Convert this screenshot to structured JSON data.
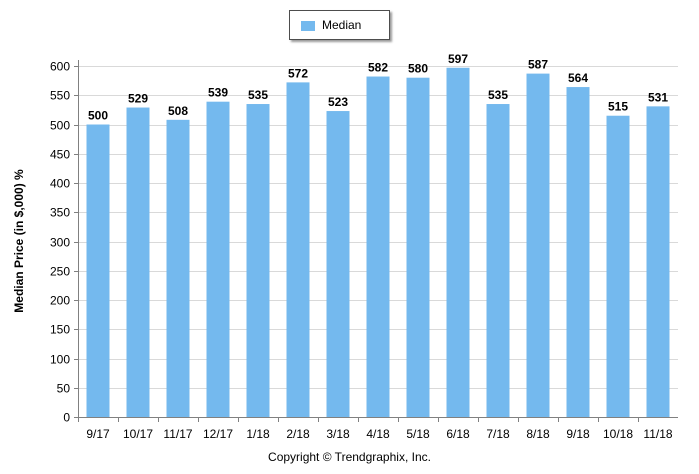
{
  "chart_data": {
    "type": "bar",
    "categories": [
      "9/17",
      "10/17",
      "11/17",
      "12/17",
      "1/18",
      "2/18",
      "3/18",
      "4/18",
      "5/18",
      "6/18",
      "7/18",
      "8/18",
      "9/18",
      "10/18",
      "11/18"
    ],
    "series": [
      {
        "name": "Median",
        "values": [
          500,
          529,
          508,
          539,
          535,
          572,
          523,
          582,
          580,
          597,
          535,
          587,
          564,
          515,
          531
        ]
      }
    ],
    "title": "",
    "xlabel": "",
    "ylabel": "Median Price (in $,000) %",
    "ylim": [
      0,
      600
    ],
    "yticks": [
      0,
      50,
      100,
      150,
      200,
      250,
      300,
      350,
      400,
      450,
      500,
      550,
      600
    ],
    "grid": true,
    "data_labels": true,
    "legend_position": "top-center",
    "bar_color": "#74b9ee",
    "footer": "Copyright © Trendgraphix, Inc."
  }
}
